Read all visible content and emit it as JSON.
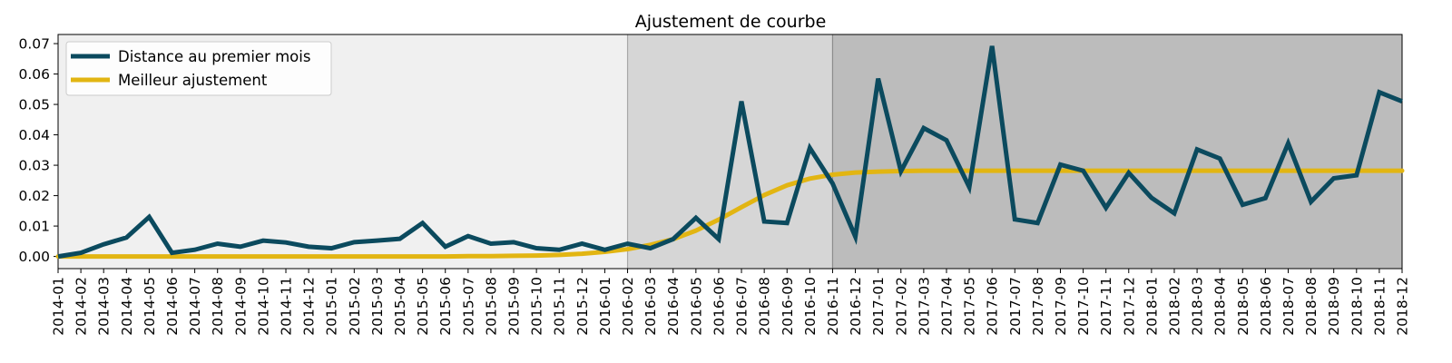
{
  "chart_data": {
    "type": "line",
    "title": "Ajustement de courbe",
    "xlabel": "",
    "ylabel": "",
    "categories": [
      "2014-01",
      "2014-02",
      "2014-03",
      "2014-04",
      "2014-05",
      "2014-06",
      "2014-07",
      "2014-08",
      "2014-09",
      "2014-10",
      "2014-11",
      "2014-12",
      "2015-01",
      "2015-02",
      "2015-03",
      "2015-04",
      "2015-05",
      "2015-06",
      "2015-07",
      "2015-08",
      "2015-09",
      "2015-10",
      "2015-11",
      "2015-12",
      "2016-01",
      "2016-02",
      "2016-03",
      "2016-04",
      "2016-05",
      "2016-06",
      "2016-07",
      "2016-08",
      "2016-09",
      "2016-10",
      "2016-11",
      "2016-12",
      "2017-01",
      "2017-02",
      "2017-03",
      "2017-04",
      "2017-05",
      "2017-06",
      "2017-07",
      "2017-08",
      "2017-09",
      "2017-10",
      "2017-11",
      "2017-12",
      "2018-01",
      "2018-02",
      "2018-03",
      "2018-04",
      "2018-05",
      "2018-06",
      "2018-07",
      "2018-08",
      "2018-09",
      "2018-10",
      "2018-11",
      "2018-12"
    ],
    "ylim": [
      -0.004,
      0.073
    ],
    "yticks": [
      0.0,
      0.01,
      0.02,
      0.03,
      0.04,
      0.05,
      0.06,
      0.07
    ],
    "ytick_labels": [
      "0.00",
      "0.01",
      "0.02",
      "0.03",
      "0.04",
      "0.05",
      "0.06",
      "0.07"
    ],
    "grid": false,
    "legend_position": "top-left",
    "regions": [
      {
        "from": "2014-01",
        "to": "2016-02",
        "color": "#f0f0f0"
      },
      {
        "from": "2016-02",
        "to": "2016-11",
        "color": "#d6d6d6"
      },
      {
        "from": "2016-11",
        "to": "2018-12",
        "color": "#bcbcbc"
      }
    ],
    "series": [
      {
        "name": "Distance au premier mois",
        "color": "#0b4a5e",
        "values": [
          0.0,
          0.0012,
          0.004,
          0.0062,
          0.013,
          0.0012,
          0.0022,
          0.0042,
          0.0032,
          0.0052,
          0.0046,
          0.0032,
          0.0027,
          0.0047,
          0.0052,
          0.0058,
          0.011,
          0.0032,
          0.0067,
          0.0042,
          0.0047,
          0.0027,
          0.0022,
          0.0042,
          0.0022,
          0.0042,
          0.0027,
          0.0057,
          0.0127,
          0.0057,
          0.051,
          0.0115,
          0.011,
          0.0357,
          0.024,
          0.0065,
          0.0585,
          0.028,
          0.0422,
          0.0382,
          0.0228,
          0.0692,
          0.0122,
          0.011,
          0.0302,
          0.0282,
          0.016,
          0.0275,
          0.0193,
          0.0142,
          0.0352,
          0.0322,
          0.017,
          0.0192,
          0.0372,
          0.018,
          0.0257,
          0.0267,
          0.054,
          0.051
        ]
      },
      {
        "name": "Meilleur ajustement",
        "color": "#e2b512",
        "values": [
          0.0,
          0.0,
          0.0,
          0.0,
          0.0,
          0.0,
          0.0,
          0.0,
          0.0,
          0.0,
          0.0,
          0.0,
          0.0,
          0.0,
          0.0,
          0.0,
          0.0,
          0.0,
          0.0001,
          0.0001,
          0.0002,
          0.0003,
          0.0005,
          0.0009,
          0.0015,
          0.0024,
          0.0038,
          0.0057,
          0.0085,
          0.0121,
          0.0162,
          0.0202,
          0.0234,
          0.0256,
          0.0269,
          0.0276,
          0.0279,
          0.0281,
          0.0282,
          0.0282,
          0.0282,
          0.0282,
          0.0282,
          0.0282,
          0.0282,
          0.0282,
          0.0282,
          0.0282,
          0.0282,
          0.0282,
          0.0282,
          0.0282,
          0.0282,
          0.0282,
          0.0282,
          0.0282,
          0.0282,
          0.0282,
          0.0282,
          0.0282
        ]
      }
    ]
  }
}
